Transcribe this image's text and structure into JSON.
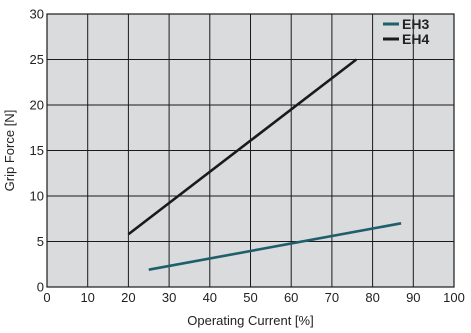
{
  "chart_data": {
    "type": "line",
    "title": "",
    "xlabel": "Operating Current [%]",
    "ylabel": "Grip Force [N]",
    "xlim": [
      0,
      100
    ],
    "ylim": [
      0,
      30
    ],
    "xticks": [
      0,
      10,
      20,
      30,
      40,
      50,
      60,
      70,
      80,
      90,
      100
    ],
    "yticks": [
      0,
      5,
      10,
      15,
      20,
      25,
      30
    ],
    "grid": true,
    "legend_position": "top-right",
    "background_color": "#d9dbdd",
    "grid_color": "#1a1a1a",
    "series": [
      {
        "name": "EH3",
        "color": "#1f5f6b",
        "x": [
          25,
          87
        ],
        "y": [
          1.9,
          7.0
        ]
      },
      {
        "name": "EH4",
        "color": "#1a1a1a",
        "x": [
          20,
          76
        ],
        "y": [
          5.8,
          25.0
        ]
      }
    ]
  }
}
